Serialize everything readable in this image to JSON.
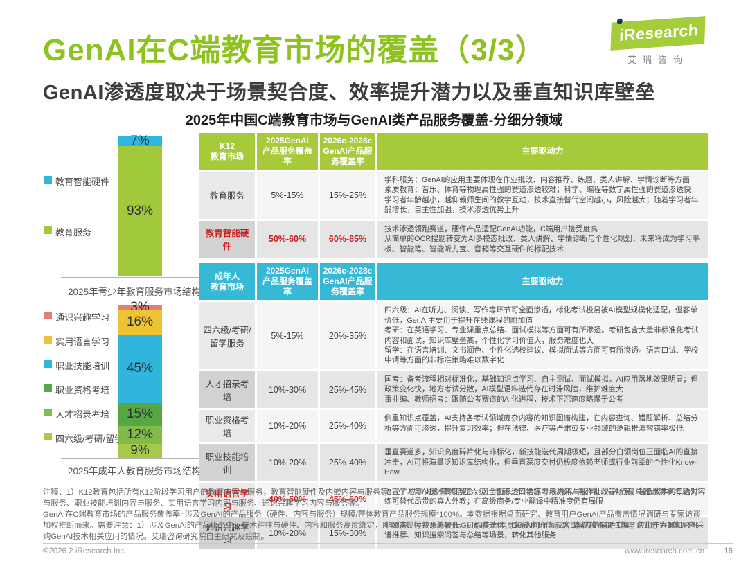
{
  "page": {
    "title": "GenAI在C端教育市场的覆盖（3/3）",
    "subtitle": "GenAI渗透度取决于场景契合度、效率提升潜力以及垂直知识库壁垒",
    "section_title": "2025年中国C端教育市场与GenAI类产品服务覆盖-分细分领域",
    "logo": {
      "brand": "iResearch",
      "brand_cn": "艾瑞咨询"
    },
    "footer": {
      "copyright": "©2026.2 iResearch Inc.",
      "website": "www.iresearch.com.cn",
      "page_number": "16"
    }
  },
  "colors": {
    "title_green": "#8ec31f",
    "table_header_green": "#a7ca3a",
    "table_header_cyan": "#36b9d7",
    "highlight_red": "#c9201d"
  },
  "chart_data": [
    {
      "type": "bar",
      "subtype": "stacked-single-column",
      "title": "2025年青少年教育服务市场结构",
      "unit": "%",
      "segments": [
        {
          "label": "教育智能硬件",
          "value": 7,
          "color": "#2db8e2"
        },
        {
          "label": "教育服务",
          "value": 93,
          "color": "#a2c93c"
        }
      ],
      "legend": [
        {
          "label": "教育智能硬件",
          "color": "#2db8e2"
        },
        {
          "label": "教育服务",
          "color": "#a2c93c"
        }
      ]
    },
    {
      "type": "bar",
      "subtype": "stacked-single-column",
      "title": "2025年成年人教育服务市场结构",
      "unit": "%",
      "segments": [
        {
          "label": "通识兴趣学习",
          "value": 3,
          "color": "#e08076"
        },
        {
          "label": "实用语言学习",
          "value": 16,
          "color": "#eec435"
        },
        {
          "label": "职业技能培训",
          "value": 45,
          "color": "#30b6dc"
        },
        {
          "label": "职业资格考培",
          "value": 15,
          "color": "#55a843"
        },
        {
          "label": "人才招录考培",
          "value": 12,
          "color": "#82ba4b"
        },
        {
          "label": "四六级/考研/留学",
          "value": 9,
          "color": "#a6c94a"
        }
      ],
      "legend": [
        {
          "label": "通识兴趣学习",
          "color": "#e08076"
        },
        {
          "label": "实用语言学习",
          "color": "#eec435"
        },
        {
          "label": "职业技能培训",
          "color": "#30b6dc"
        },
        {
          "label": "职业资格考培",
          "color": "#55a843"
        },
        {
          "label": "人才招录考培",
          "color": "#82ba4b"
        },
        {
          "label": "四六级/考研/留学",
          "color": "#a6c94a"
        }
      ]
    }
  ],
  "k12_table": {
    "headers": [
      "K12\n教育市场",
      "2025GenAI\n产品服务覆盖率",
      "2026e-2028e\nGenAI产品服\n务覆盖率",
      "主要驱动力"
    ],
    "rows": [
      {
        "category": "教育服务",
        "coverage_2025": "5%-15%",
        "coverage_2026_2028": "15%-25%",
        "highlight": false,
        "drivers": [
          "学科服务：GenAI的应用主要体现在作业批改、内容推荐、练题、类人讲解、学情诊断等方面",
          "素质教育：音乐、体育等物理属性强的赛道渗透较难；科学、编程等数字属性强的赛道渗透快",
          "学习者年龄越小，越仰赖师生间的教学互动，技术直接替代空间越小，风险越大；随着学习者年龄增长，自主性加强，技术渗透优势上升"
        ]
      },
      {
        "category": "教育智能硬件",
        "coverage_2025": "50%-60%",
        "coverage_2026_2028": "60%-85%",
        "highlight": true,
        "drivers": [
          "技术渗透领跑赛道，硬件产品适配GenAI功能，C端用户接受度高",
          "从简单的OCR搜题转变为AI多模态批改、类人讲解、学情诊断与个性化规划，未来将成为学习平板、智能笔、智能听力宝、音箱等交互硬件的标配技术"
        ]
      }
    ]
  },
  "adult_table": {
    "headers": [
      "成年人\n教育市场",
      "2025GenAI\n产品服务覆盖率",
      "2026e-2028e\nGenAI产品服\n务覆盖率",
      "主要驱动力"
    ],
    "rows": [
      {
        "category": "四六级/考研/留学服务",
        "coverage_2025": "5%-15%",
        "coverage_2026_2028": "20%-35%",
        "highlight": false,
        "drivers": [
          "四六级：AI在听力、阅读、写作等环节可全面渗透，标化考试极易被AI模型规模化适配，但客单价低，GenAI主要用于提升在线课程的附加值",
          "考研：在英语学习、专业课重点总结、面试模拟等方面可有所渗透。考研包含大量非标准化考试内容和面试，知识库壁垒高，个性化学习价值大，服务难度也大",
          "留学：在语言培训、文书润色、个性化选校建议、模拟面试等方面可有所渗透。语言口试、学校申请等方面的非标准策略难以数字化"
        ]
      },
      {
        "category": "人才招录考培",
        "coverage_2025": "10%-30%",
        "coverage_2026_2028": "25%-45%",
        "highlight": false,
        "drivers": [
          "国考：备考流程相对标准化，基础知识点学习、自主测试、面试模拟，AI应用落地效果明显；但政策变化快，地方考试分散，AI模型语料迭代存在时滞风险，维护难度大",
          "事业编、教师招考：跟随公考赛道的AI化进程，技术下沉速度略慢于公考"
        ]
      },
      {
        "category": "职业资格考培",
        "coverage_2025": "10%-20%",
        "coverage_2026_2028": "25%-40%",
        "highlight": false,
        "drivers": [
          "侧重知识点覆盖，AI支持各考试领域庞杂内容的知识图谱构建，在内容查询、错题解析、总结分析等方面可渗透，提升复习效率；但在法律、医疗等严肃或专业领域的逻辑推演容错率极低"
        ]
      },
      {
        "category": "职业技能培训",
        "coverage_2025": "10%-20%",
        "coverage_2026_2028": "25%-40%",
        "highlight": false,
        "drivers": [
          "垂直赛道多，知识高度碎片化与非标化，新技能迭代周期极短，且部分白领岗位正面临AI的直接冲击，AI可将海量泛知识库结构化，但垂直深度交付仍极度依赖老师或行业前辈的个性化Know-How"
        ]
      },
      {
        "category": "实用语言学习",
        "coverage_2025": "40%-50%",
        "coverage_2026_2028": "45%-60%",
        "highlight": true,
        "drivers": [
          "语言学习与AI技术高度契合，可全面渗透口语练习与测评、写作批改等场景，超低成本的口语对练可替代昂贵的真人外教；在高级商务/专业翻译中精准度仍有局限"
        ]
      },
      {
        "category": "通识兴趣学习",
        "coverage_2025": "10%-20%",
        "coverage_2026_2028": "15%-30%",
        "highlight": false,
        "drivers": [
          "非刚需、付费意愿较低、目标多元化，GenAI可作为获客或留存的辅助工具，应用于兴趣知识图谱推荐、知识搜索问答与总结等场景，转化其他服务"
        ]
      }
    ]
  },
  "notes": [
    "注释：1）K12教育包括所有K12阶段学习用户的教育内容与服务，教育智能硬件及内嵌内容与服务等。2）成年人教育包括四六级、考研、留学等考培内容与服务，人才招录与职业资格考培内容与服务、职业技能培训内容与服务、实用语言学习内容与服务、通识兴趣学习内容与服务等。",
    "GenAI在C端教育市场的产品服务覆盖率=涉及GenAI的产品服务（硬件、内容与服务）规模/整体教育产品服务规模*100%。本数据根据桌面研究、教育用户GenAI产品覆盖情况调研与专家访谈加权推断而来。需要注意：1）涉及GenAI的产品服务中，技术往往与硬件、内容和服务高度绑定，所以该规模并不等同于GenAI能力本身的技术价值。2）本规模不包括教育企业作为B端客户采购GenAI技术相关应用的情况。艾瑞咨询研究院自主研究及绘制。"
  ]
}
